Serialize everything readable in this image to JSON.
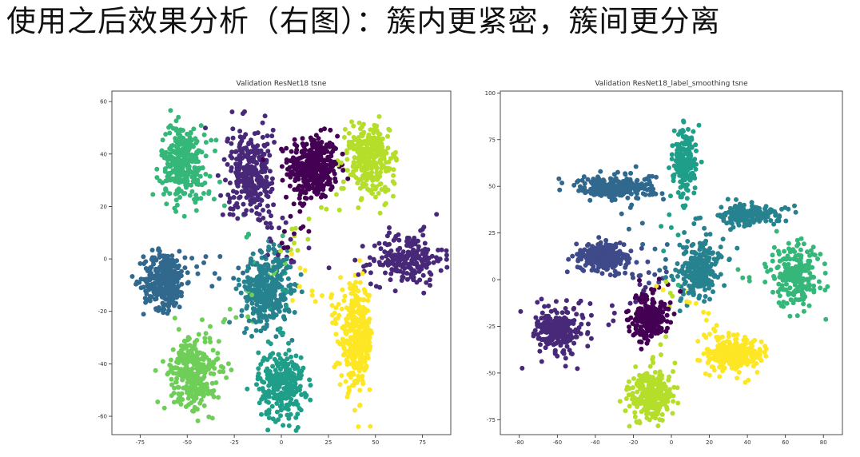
{
  "slide": {
    "heading": "使用之后效果分析（右图）：簇内更紧密，簇间更分离"
  },
  "colors": {
    "viridis": [
      "#440154",
      "#482878",
      "#3e4a89",
      "#31688e",
      "#26828e",
      "#1f9e89",
      "#35b779",
      "#6ece58",
      "#b5de2b",
      "#fde725"
    ]
  },
  "chart_data": [
    {
      "type": "scatter",
      "title": "Validation ResNet18 tsne",
      "xlabel": "",
      "ylabel": "",
      "xlim": [
        -90,
        90
      ],
      "ylim": [
        -67,
        64
      ],
      "xticks": [
        -75,
        -50,
        -25,
        0,
        25,
        50,
        75
      ],
      "yticks": [
        -60,
        -40,
        -20,
        0,
        20,
        40,
        60
      ],
      "grid": false,
      "clusters": [
        {
          "class": 0,
          "center": [
            17,
            35
          ],
          "spread": [
            12,
            11
          ],
          "count": 360
        },
        {
          "class": 1,
          "center": [
            -17,
            33
          ],
          "spread": [
            11,
            14
          ],
          "count": 300
        },
        {
          "class": 1,
          "center": [
            67,
            0
          ],
          "spread": [
            17,
            9
          ],
          "count": 200
        },
        {
          "class": 3,
          "center": [
            -62,
            -8
          ],
          "spread": [
            10,
            10
          ],
          "count": 330
        },
        {
          "class": 4,
          "center": [
            -8,
            -12
          ],
          "spread": [
            12,
            12
          ],
          "count": 340
        },
        {
          "class": 5,
          "center": [
            0,
            -48
          ],
          "spread": [
            11,
            12
          ],
          "count": 260
        },
        {
          "class": 6,
          "center": [
            -52,
            37
          ],
          "spread": [
            11,
            13
          ],
          "count": 290
        },
        {
          "class": 7,
          "center": [
            -47,
            -44
          ],
          "spread": [
            12,
            12
          ],
          "count": 300
        },
        {
          "class": 8,
          "center": [
            47,
            38
          ],
          "spread": [
            11,
            13
          ],
          "count": 280
        },
        {
          "class": 9,
          "center": [
            40,
            -30
          ],
          "spread": [
            8,
            18
          ],
          "count": 330
        }
      ]
    },
    {
      "type": "scatter",
      "title": "Validation ResNet18_label_smoothing tsne",
      "xlabel": "",
      "ylabel": "",
      "xlim": [
        -90,
        90
      ],
      "ylim": [
        -83,
        101
      ],
      "xticks": [
        -80,
        -60,
        -40,
        -20,
        0,
        20,
        40,
        60,
        80
      ],
      "yticks": [
        -75,
        -50,
        -25,
        0,
        25,
        50,
        75,
        100
      ],
      "grid": false,
      "clusters": [
        {
          "class": 0,
          "center": [
            -12,
            -20
          ],
          "spread": [
            9,
            11
          ],
          "count": 220
        },
        {
          "class": 1,
          "center": [
            -60,
            -27
          ],
          "spread": [
            12,
            11
          ],
          "count": 240
        },
        {
          "class": 2,
          "center": [
            -35,
            12
          ],
          "spread": [
            13,
            7
          ],
          "count": 240
        },
        {
          "class": 3,
          "center": [
            -30,
            50
          ],
          "spread": [
            18,
            6
          ],
          "count": 240
        },
        {
          "class": 4,
          "center": [
            15,
            5
          ],
          "spread": [
            10,
            14
          ],
          "count": 220
        },
        {
          "class": 4,
          "center": [
            40,
            35
          ],
          "spread": [
            18,
            5
          ],
          "count": 160
        },
        {
          "class": 5,
          "center": [
            7,
            65
          ],
          "spread": [
            6,
            17
          ],
          "count": 180
        },
        {
          "class": 6,
          "center": [
            65,
            2
          ],
          "spread": [
            12,
            15
          ],
          "count": 200
        },
        {
          "class": 8,
          "center": [
            -10,
            -62
          ],
          "spread": [
            11,
            12
          ],
          "count": 240
        },
        {
          "class": 9,
          "center": [
            33,
            -40
          ],
          "spread": [
            13,
            8
          ],
          "count": 260
        }
      ]
    }
  ]
}
